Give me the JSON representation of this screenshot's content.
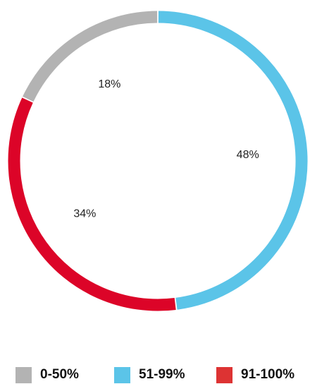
{
  "chart_data": {
    "type": "pie",
    "style": "donut",
    "title": "",
    "slices": [
      {
        "label": "51-99%",
        "value": 48,
        "value_label": "48%",
        "color": "#5bc4e8"
      },
      {
        "label": "91-100%",
        "value": 34,
        "value_label": "34%",
        "color": "#dc0428"
      },
      {
        "label": "0-50%",
        "value": 18,
        "value_label": "18%",
        "color": "#b3b3b3"
      }
    ],
    "legend": {
      "placement": "bottom",
      "items": [
        {
          "label": "0-50%",
          "color": "#b3b3b3"
        },
        {
          "label": "51-99%",
          "color": "#5bc4e8"
        },
        {
          "label": "91-100%",
          "color": "#dd3333"
        }
      ]
    }
  }
}
